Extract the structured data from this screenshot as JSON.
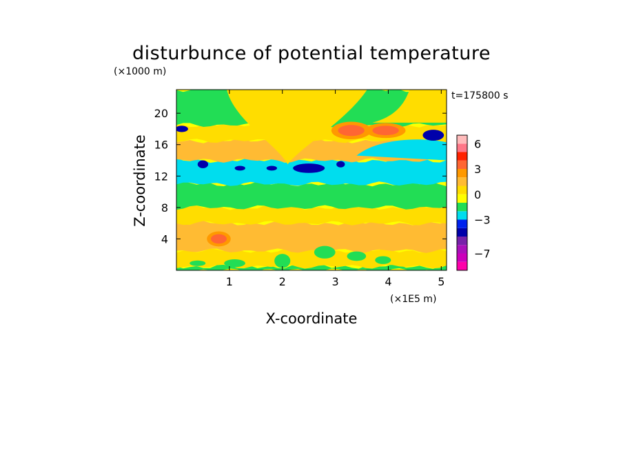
{
  "chart_data": {
    "type": "heatmap",
    "title": "disturbunce of potential temperature",
    "xlabel": "X-coordinate",
    "ylabel": "Z-coordinate",
    "x_unit": "(×1E5 m)",
    "y_unit": "(×1000 m)",
    "time_label": "t=175800 s",
    "x_range": [
      0,
      5.1
    ],
    "y_range": [
      0,
      23
    ],
    "x_ticks": [
      1,
      2,
      3,
      4,
      5
    ],
    "y_ticks": [
      4,
      8,
      12,
      16,
      20
    ],
    "x_tick_labels": [
      "1",
      "2",
      "3",
      "4",
      "5"
    ],
    "y_tick_labels": [
      "4",
      "8",
      "12",
      "16",
      "20"
    ],
    "colorbar": {
      "levels": [
        -9,
        -8,
        -7,
        -6,
        -5,
        -4,
        -3,
        -2,
        -1,
        0,
        1,
        2,
        3,
        4,
        5,
        6,
        7
      ],
      "colors": [
        "#ff00aa",
        "#cc00bb",
        "#aa10bb",
        "#7722aa",
        "#0000aa",
        "#0022ee",
        "#00ddee",
        "#22dd55",
        "#ffff00",
        "#ffdd00",
        "#ffbb33",
        "#ff9900",
        "#ff6633",
        "#ff2200",
        "#ff7788",
        "#ffbbbb"
      ],
      "tick_values": [
        6,
        3,
        0,
        -3,
        -7
      ],
      "tick_labels": [
        "6",
        "3",
        "0",
        "−3",
        "−7"
      ]
    },
    "fields": {
      "background": "#ffff00",
      "bands": [
        {
          "z": [
            0.0,
            0.5
          ],
          "value": -1.5
        },
        {
          "z": [
            0.5,
            2.5
          ],
          "value": 0.5
        },
        {
          "z": [
            2.5,
            6.0
          ],
          "value": 1.2
        },
        {
          "z": [
            6.0,
            8.0
          ],
          "value": 0.5
        },
        {
          "z": [
            8.0,
            11.0
          ],
          "value": -1.5
        },
        {
          "z": [
            11.0,
            14.0
          ],
          "value": -2.5
        },
        {
          "z": [
            14.0,
            16.5
          ],
          "value": 1.2
        },
        {
          "z": [
            16.5,
            18.5
          ],
          "value": 0.3
        },
        {
          "z": [
            18.5,
            23.0
          ],
          "value": -1.5
        }
      ],
      "blobs": [
        {
          "x": 0.8,
          "z": 4.0,
          "rx": 0.15,
          "rz": 0.6,
          "value": 3.5
        },
        {
          "x": 3.3,
          "z": 17.8,
          "rx": 0.25,
          "rz": 0.7,
          "value": 3.5
        },
        {
          "x": 3.95,
          "z": 17.8,
          "rx": 0.25,
          "rz": 0.6,
          "value": 3.5
        },
        {
          "x": 0.5,
          "z": 13.5,
          "rx": 0.1,
          "rz": 0.5,
          "value": -4.5
        },
        {
          "x": 1.2,
          "z": 13.0,
          "rx": 0.1,
          "rz": 0.3,
          "value": -4.5
        },
        {
          "x": 1.8,
          "z": 13.0,
          "rx": 0.1,
          "rz": 0.3,
          "value": -4.5
        },
        {
          "x": 2.5,
          "z": 13.0,
          "rx": 0.3,
          "rz": 0.6,
          "value": -4.5
        },
        {
          "x": 3.1,
          "z": 13.5,
          "rx": 0.08,
          "rz": 0.4,
          "value": -4.5
        },
        {
          "x": 0.1,
          "z": 18.0,
          "rx": 0.12,
          "rz": 0.4,
          "value": -4.5
        },
        {
          "x": 4.85,
          "z": 17.2,
          "rx": 0.2,
          "rz": 0.7,
          "value": -4.5
        }
      ]
    }
  }
}
